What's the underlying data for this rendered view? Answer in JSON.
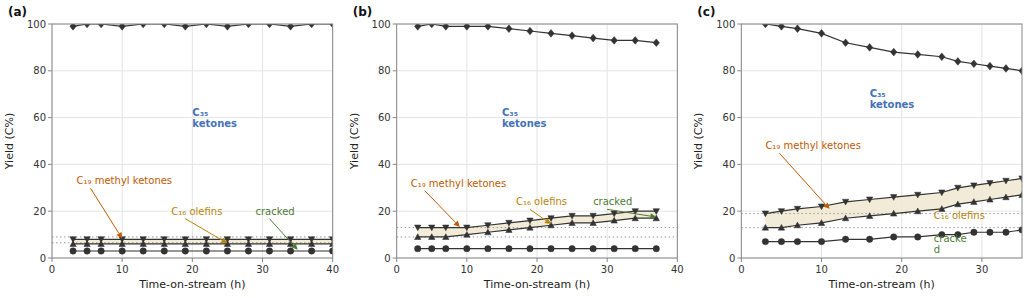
{
  "chart_data": [
    {
      "type": "line",
      "title": "(a)",
      "xlabel": "Time-on-stream (h)",
      "ylabel": "Yield (C%)",
      "xlim": [
        0,
        40
      ],
      "xticks": [
        0,
        10,
        20,
        30,
        40
      ],
      "ylim": [
        0,
        100
      ],
      "yticks": [
        0,
        20,
        40,
        60,
        80,
        100
      ],
      "grid": true,
      "x": [
        3,
        5,
        7,
        10,
        13,
        16,
        19,
        22,
        25,
        28,
        31,
        34,
        37,
        40
      ],
      "series": [
        {
          "name": "C₃₅ ketones",
          "color": "#333333",
          "marker": "diamond",
          "values": [
            99,
            100,
            100,
            99,
            100,
            100,
            99,
            100,
            99,
            100,
            100,
            99,
            100,
            100
          ]
        },
        {
          "name": "C₁₉ methyl ketones",
          "color": "#333333",
          "marker": "triangle-down",
          "values": [
            8,
            8,
            8,
            8,
            8,
            8,
            8,
            8,
            8,
            8,
            8,
            8,
            8,
            8
          ]
        },
        {
          "name": "C₁₆ olefins",
          "color": "#333333",
          "marker": "triangle-up",
          "values": [
            6,
            6,
            6,
            6,
            6,
            6,
            6,
            6,
            6,
            6,
            6,
            6,
            6,
            6
          ]
        },
        {
          "name": "cracked",
          "color": "#333333",
          "marker": "circle",
          "values": [
            3,
            3,
            3,
            3,
            3,
            3,
            3,
            3,
            3,
            3,
            3,
            3,
            3,
            3
          ]
        }
      ],
      "fill_between": {
        "series": [
          "C₁₆ olefins",
          "C₁₉ methyl ketones"
        ],
        "color": "#f0e8d0"
      },
      "hlines": [
        9.0,
        6.5
      ],
      "annotations": [
        {
          "text": "C₃₅\nketones",
          "x": 20,
          "y": 60,
          "color": "#4472b8"
        },
        {
          "text": "C₁₉ methyl ketones",
          "x": 3.5,
          "y": 33,
          "color": "#c05a00",
          "arrow": [
            10,
            8.3
          ]
        },
        {
          "text": "C₁₆ olefins",
          "x": 17,
          "y": 20,
          "color": "#b8860b",
          "arrow": [
            25,
            6.3
          ]
        },
        {
          "text": "cracked",
          "x": 29,
          "y": 20,
          "color": "#4e7a35",
          "arrow": [
            35,
            3.5
          ]
        }
      ]
    },
    {
      "type": "line",
      "title": "(b)",
      "xlabel": "Time-on-stream (h)",
      "ylabel": "Yield (C%)",
      "xlim": [
        0,
        40
      ],
      "xticks": [
        0,
        10,
        20,
        30,
        40
      ],
      "ylim": [
        0,
        100
      ],
      "yticks": [
        0,
        20,
        40,
        60,
        80,
        100
      ],
      "grid": true,
      "x": [
        3,
        5,
        7,
        10,
        13,
        16,
        19,
        22,
        25,
        28,
        31,
        34,
        37
      ],
      "series": [
        {
          "name": "C₃₅ ketones",
          "color": "#333333",
          "marker": "diamond",
          "values": [
            99,
            100,
            99,
            99,
            99,
            98,
            97,
            96,
            95,
            94,
            93,
            93,
            92
          ]
        },
        {
          "name": "C₁₉ methyl ketones",
          "color": "#333333",
          "marker": "triangle-down",
          "values": [
            13,
            13,
            13,
            13,
            14,
            15,
            16,
            17,
            18,
            18,
            19,
            20,
            20
          ]
        },
        {
          "name": "C₁₆ olefins",
          "color": "#333333",
          "marker": "triangle-up",
          "values": [
            9,
            9,
            9,
            10,
            11,
            12,
            13,
            14,
            15,
            15,
            16,
            17,
            17
          ]
        },
        {
          "name": "cracked",
          "color": "#333333",
          "marker": "circle",
          "values": [
            4,
            4,
            4,
            4,
            4,
            4,
            4,
            4,
            4,
            4,
            4,
            4,
            4
          ]
        }
      ],
      "fill_between": {
        "series": [
          "C₁₆ olefins",
          "C₁₉ methyl ketones"
        ],
        "color": "#f0e8d0"
      },
      "hlines": [
        13.0,
        9.0
      ],
      "annotations": [
        {
          "text": "C₃₅\nketones",
          "x": 15,
          "y": 60,
          "color": "#4472b8"
        },
        {
          "text": "C₁₉ methyl ketones",
          "x": 2,
          "y": 32,
          "color": "#c05a00",
          "arrow": [
            9,
            13.3
          ]
        },
        {
          "text": "C₁₆ olefins",
          "x": 17,
          "y": 24,
          "color": "#b8860b",
          "arrow": [
            22,
            14.5
          ]
        },
        {
          "text": "cracked",
          "x": 28,
          "y": 24,
          "color": "#4e7a35",
          "arrow": [
            37,
            17.5
          ]
        }
      ]
    },
    {
      "type": "line",
      "title": "(c)",
      "xlabel": "Time-on-stream (h)",
      "ylabel": "Yield (C%)",
      "xlim": [
        0,
        35
      ],
      "xticks": [
        0,
        10,
        20,
        30
      ],
      "ylim": [
        0,
        100
      ],
      "yticks": [
        0,
        20,
        40,
        60,
        80,
        100
      ],
      "grid": true,
      "x": [
        3,
        5,
        7,
        10,
        13,
        16,
        19,
        22,
        25,
        27,
        29,
        31,
        33,
        35
      ],
      "series": [
        {
          "name": "C₃₅ ketones",
          "color": "#333333",
          "marker": "diamond",
          "values": [
            100,
            99,
            98,
            96,
            92,
            90,
            88,
            87,
            86,
            84,
            83,
            82,
            81,
            80
          ]
        },
        {
          "name": "C₁₉ methyl ketones",
          "color": "#333333",
          "marker": "triangle-down",
          "values": [
            19,
            20,
            21,
            22,
            24,
            25,
            26,
            27,
            28,
            30,
            31,
            32,
            33,
            34
          ]
        },
        {
          "name": "C₁₆ olefins",
          "color": "#333333",
          "marker": "triangle-up",
          "values": [
            13,
            13,
            14,
            15,
            17,
            18,
            19,
            20,
            21,
            23,
            24,
            25,
            26,
            27
          ]
        },
        {
          "name": "cracked",
          "color": "#333333",
          "marker": "circle",
          "values": [
            7,
            7,
            7,
            7,
            8,
            8,
            9,
            9,
            10,
            10,
            11,
            11,
            11,
            12
          ]
        }
      ],
      "fill_between": {
        "series": [
          "C₁₆ olefins",
          "C₁₉ methyl ketones"
        ],
        "color": "#f0e8d0"
      },
      "hlines": [
        19.0,
        13.0
      ],
      "annotations": [
        {
          "text": "C₃₅\nketones",
          "x": 16,
          "y": 68,
          "color": "#4472b8"
        },
        {
          "text": "C₁₉ methyl ketones",
          "x": 3,
          "y": 48,
          "color": "#c05a00",
          "arrow": [
            11,
            21
          ]
        },
        {
          "text": "C₁₆ olefins",
          "x": 24,
          "y": 18,
          "color": "#b8860b"
        },
        {
          "text": "cracke\nd",
          "x": 24,
          "y": 6,
          "color": "#4e7a35"
        }
      ]
    }
  ]
}
